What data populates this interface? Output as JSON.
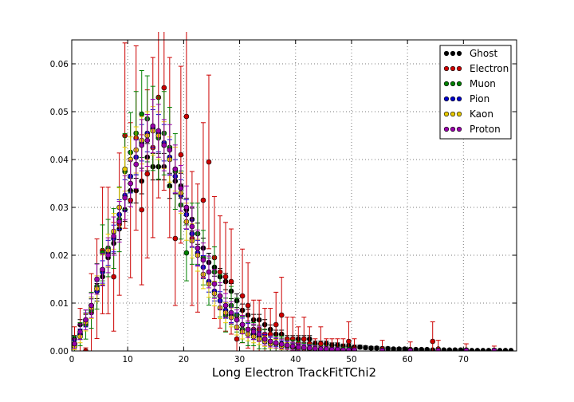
{
  "chart_data": {
    "type": "scatter",
    "title": "",
    "xlabel": "Long Electron TrackFitTChi2",
    "ylabel": "",
    "xlim": [
      0,
      79.5
    ],
    "ylim": [
      0,
      0.065
    ],
    "xticks": [
      0,
      10,
      20,
      30,
      40,
      50,
      60,
      70
    ],
    "yticks": [
      0.0,
      0.01,
      0.02,
      0.03,
      0.04,
      0.05,
      0.06
    ],
    "ytick_labels": [
      "0.00",
      "0.01",
      "0.02",
      "0.03",
      "0.04",
      "0.05",
      "0.06"
    ],
    "grid": true,
    "legend_position": "top-right",
    "series": [
      {
        "name": "Ghost",
        "color": "#000000",
        "x": [
          0.5,
          1.5,
          2.5,
          3.5,
          4.5,
          5.5,
          6.5,
          7.5,
          8.5,
          9.5,
          10.5,
          11.5,
          12.5,
          13.5,
          14.5,
          15.5,
          16.5,
          17.5,
          18.5,
          19.5,
          20.5,
          21.5,
          22.5,
          23.5,
          24.5,
          25.5,
          26.5,
          27.5,
          28.5,
          29.5,
          30.5,
          31.5,
          32.5,
          33.5,
          34.5,
          35.5,
          36.5,
          37.5,
          38.5,
          39.5,
          40.5,
          41.5,
          42.5,
          43.5,
          44.5,
          45.5,
          46.5,
          47.5,
          48.5,
          49.5,
          50.5,
          51.5,
          52.5,
          53.5,
          54.5,
          55.5,
          56.5,
          57.5,
          58.5,
          59.5,
          60.5,
          61.5,
          62.5,
          63.5,
          64.5,
          65.5,
          66.5,
          67.5,
          68.5,
          69.5,
          70.5,
          71.5,
          72.5,
          73.5,
          74.5,
          75.5,
          76.5,
          77.5,
          78.5
        ],
        "y": [
          0.0025,
          0.0055,
          0.0065,
          0.0095,
          0.0125,
          0.0155,
          0.0195,
          0.0225,
          0.0255,
          0.0295,
          0.0335,
          0.0335,
          0.0355,
          0.0405,
          0.0385,
          0.0385,
          0.0385,
          0.0345,
          0.0355,
          0.0345,
          0.0295,
          0.0275,
          0.0245,
          0.0215,
          0.0185,
          0.0175,
          0.0155,
          0.0145,
          0.0125,
          0.0105,
          0.0085,
          0.0075,
          0.0065,
          0.0065,
          0.0055,
          0.0045,
          0.0035,
          0.0035,
          0.0025,
          0.0025,
          0.0025,
          0.0025,
          0.0025,
          0.0015,
          0.0015,
          0.0015,
          0.0012,
          0.0012,
          0.001,
          0.001,
          0.0008,
          0.0008,
          0.0007,
          0.0006,
          0.0006,
          0.0005,
          0.0005,
          0.0004,
          0.0004,
          0.0004,
          0.0003,
          0.0003,
          0.0003,
          0.0003,
          0.0002,
          0.0002,
          0.0002,
          0.0002,
          0.0002,
          0.0002,
          0.0001,
          0.0001,
          0.0001,
          0.0001,
          0.0001,
          0.0001,
          0.0001,
          0.0001,
          0.0001
        ]
      },
      {
        "name": "Electron",
        "color": "#cc0000",
        "x": [
          0.5,
          1.5,
          2.5,
          3.5,
          4.5,
          5.5,
          6.5,
          7.5,
          8.5,
          9.5,
          10.5,
          11.5,
          12.5,
          13.5,
          14.5,
          15.5,
          16.5,
          17.5,
          18.5,
          19.5,
          20.5,
          21.5,
          22.5,
          23.5,
          24.5,
          25.5,
          26.5,
          27.5,
          28.5,
          29.5,
          30.5,
          31.5,
          32.5,
          33.5,
          34.5,
          35.5,
          36.5,
          37.5,
          38.5,
          39.5,
          40.5,
          41.5,
          42.5,
          43.5,
          44.5,
          45.5,
          46.5,
          47.5,
          48.5,
          49.5,
          50.5,
          55.5,
          60.5,
          64.5,
          65.5,
          70.5,
          75.5
        ],
        "y": [
          0.0015,
          0.0035,
          0.0,
          0.008,
          0.013,
          0.021,
          0.021,
          0.0155,
          0.0265,
          0.045,
          0.0315,
          0.0445,
          0.0295,
          0.037,
          0.0425,
          0.053,
          0.055,
          0.0425,
          0.0235,
          0.041,
          0.049,
          0.0235,
          0.0215,
          0.0315,
          0.0395,
          0.0195,
          0.0165,
          0.0155,
          0.0145,
          0.0025,
          0.0115,
          0.0095,
          0.0045,
          0.0045,
          0.0035,
          0.0035,
          0.0055,
          0.0075,
          0.0025,
          0.0025,
          0.0015,
          0.0025,
          0.0015,
          0.0005,
          0.0015,
          0.0005,
          0.0005,
          0.0005,
          0.0005,
          0.002,
          0.0005,
          0.0004,
          0.0003,
          0.002,
          0.0004,
          0.0002,
          0.0001
        ]
      },
      {
        "name": "Muon",
        "color": "#008000",
        "x": [
          0.5,
          1.5,
          2.5,
          3.5,
          4.5,
          5.5,
          6.5,
          7.5,
          8.5,
          9.5,
          10.5,
          11.5,
          12.5,
          13.5,
          14.5,
          15.5,
          16.5,
          17.5,
          18.5,
          19.5,
          20.5,
          21.5,
          22.5,
          23.5,
          24.5,
          25.5,
          26.5,
          27.5,
          28.5,
          29.5,
          30.5,
          31.5,
          32.5,
          33.5,
          34.5,
          35.5,
          36.5,
          37.5,
          38.5,
          39.5,
          40.5,
          41.5,
          42.5,
          43.5,
          44.5,
          45.5,
          46.5,
          47.5,
          48.5,
          49.5,
          50.5,
          55.5,
          60.5,
          65.5,
          70.5,
          75.5
        ],
        "y": [
          0.0015,
          0.0035,
          0.0055,
          0.0085,
          0.0135,
          0.0205,
          0.0215,
          0.0235,
          0.0275,
          0.0375,
          0.0415,
          0.0455,
          0.0495,
          0.0485,
          0.0465,
          0.0445,
          0.0455,
          0.0425,
          0.0375,
          0.0305,
          0.0205,
          0.0245,
          0.0245,
          0.0195,
          0.0145,
          0.0165,
          0.0115,
          0.0075,
          0.0095,
          0.0075,
          0.0045,
          0.0035,
          0.0035,
          0.0025,
          0.0025,
          0.0015,
          0.0015,
          0.0015,
          0.001,
          0.001,
          0.0008,
          0.0006,
          0.0005,
          0.0004,
          0.0003,
          0.0003,
          0.0002,
          0.0002,
          0.0002,
          0.0002,
          0.0001,
          0.0001,
          0.0001,
          0.0001,
          0.0001,
          0.0001
        ]
      },
      {
        "name": "Pion",
        "color": "#0000cc",
        "x": [
          0.5,
          1.5,
          2.5,
          3.5,
          4.5,
          5.5,
          6.5,
          7.5,
          8.5,
          9.5,
          10.5,
          11.5,
          12.5,
          13.5,
          14.5,
          15.5,
          16.5,
          17.5,
          18.5,
          19.5,
          20.5,
          21.5,
          22.5,
          23.5,
          24.5,
          25.5,
          26.5,
          27.5,
          28.5,
          29.5,
          30.5,
          31.5,
          32.5,
          33.5,
          34.5,
          35.5,
          36.5,
          37.5,
          38.5,
          39.5,
          40.5,
          41.5,
          42.5,
          43.5,
          44.5,
          45.5,
          46.5,
          47.5,
          48.5,
          49.5,
          50.5,
          55.5,
          60.5,
          65.5,
          70.5,
          75.5
        ],
        "y": [
          0.0015,
          0.0035,
          0.0065,
          0.0095,
          0.0125,
          0.0165,
          0.0205,
          0.0235,
          0.0285,
          0.0325,
          0.0365,
          0.0405,
          0.0435,
          0.0455,
          0.0465,
          0.0455,
          0.0435,
          0.0405,
          0.0365,
          0.0325,
          0.0285,
          0.0245,
          0.0205,
          0.0175,
          0.0145,
          0.0125,
          0.0105,
          0.0085,
          0.0075,
          0.0065,
          0.0055,
          0.0045,
          0.0035,
          0.003,
          0.0025,
          0.002,
          0.0017,
          0.0014,
          0.0012,
          0.001,
          0.0008,
          0.0007,
          0.0006,
          0.0005,
          0.0004,
          0.0004,
          0.0003,
          0.0003,
          0.0002,
          0.0002,
          0.0002,
          0.0001,
          0.0001,
          0.0001,
          0.0001,
          0.0001
        ]
      },
      {
        "name": "Kaon",
        "color": "#e6c800",
        "x": [
          0.5,
          1.5,
          2.5,
          3.5,
          4.5,
          5.5,
          6.5,
          7.5,
          8.5,
          9.5,
          10.5,
          11.5,
          12.5,
          13.5,
          14.5,
          15.5,
          16.5,
          17.5,
          18.5,
          19.5,
          20.5,
          21.5,
          22.5,
          23.5,
          24.5,
          25.5,
          26.5,
          27.5,
          28.5,
          29.5,
          30.5,
          31.5,
          32.5,
          33.5,
          34.5,
          35.5,
          36.5,
          37.5,
          38.5,
          39.5,
          40.5,
          41.5,
          42.5,
          43.5,
          44.5,
          45.5,
          46.5,
          47.5,
          48.5,
          49.5,
          50.5,
          55.5,
          60.5,
          65.5,
          70.5,
          75.5
        ],
        "y": [
          0.001,
          0.003,
          0.006,
          0.009,
          0.013,
          0.017,
          0.021,
          0.025,
          0.03,
          0.038,
          0.04,
          0.042,
          0.044,
          0.045,
          0.046,
          0.045,
          0.043,
          0.04,
          0.038,
          0.033,
          0.027,
          0.023,
          0.02,
          0.016,
          0.014,
          0.012,
          0.009,
          0.008,
          0.007,
          0.005,
          0.004,
          0.0035,
          0.003,
          0.0025,
          0.002,
          0.0015,
          0.0015,
          0.001,
          0.001,
          0.0008,
          0.0006,
          0.0005,
          0.0004,
          0.0004,
          0.0003,
          0.0003,
          0.0002,
          0.0002,
          0.0002,
          0.0001,
          0.0001,
          0.0001,
          0.0001,
          0.0001,
          0.0001,
          0.0001
        ]
      },
      {
        "name": "Proton",
        "color": "#9900aa",
        "x": [
          0.5,
          1.5,
          2.5,
          3.5,
          4.5,
          5.5,
          6.5,
          7.5,
          8.5,
          9.5,
          10.5,
          11.5,
          12.5,
          13.5,
          14.5,
          15.5,
          16.5,
          17.5,
          18.5,
          19.5,
          20.5,
          21.5,
          22.5,
          23.5,
          24.5,
          25.5,
          26.5,
          27.5,
          28.5,
          29.5,
          30.5,
          31.5,
          32.5,
          33.5,
          34.5,
          35.5,
          36.5,
          37.5,
          38.5,
          39.5,
          40.5,
          41.5,
          42.5,
          43.5,
          44.5,
          45.5,
          46.5,
          47.5,
          48.5,
          49.5,
          50.5,
          55.5,
          60.5,
          65.5,
          70.5,
          75.5
        ],
        "y": [
          0.0015,
          0.004,
          0.0065,
          0.0095,
          0.015,
          0.017,
          0.02,
          0.024,
          0.027,
          0.032,
          0.035,
          0.039,
          0.043,
          0.044,
          0.047,
          0.046,
          0.043,
          0.042,
          0.038,
          0.034,
          0.03,
          0.026,
          0.0215,
          0.019,
          0.0165,
          0.014,
          0.0115,
          0.0095,
          0.008,
          0.0065,
          0.0055,
          0.0045,
          0.004,
          0.0035,
          0.0025,
          0.002,
          0.0017,
          0.0014,
          0.0012,
          0.001,
          0.0008,
          0.0007,
          0.0006,
          0.0005,
          0.0004,
          0.0004,
          0.0003,
          0.0003,
          0.0002,
          0.0002,
          0.0002,
          0.0001,
          0.0001,
          0.0001,
          0.0001,
          0.0001
        ]
      }
    ]
  }
}
